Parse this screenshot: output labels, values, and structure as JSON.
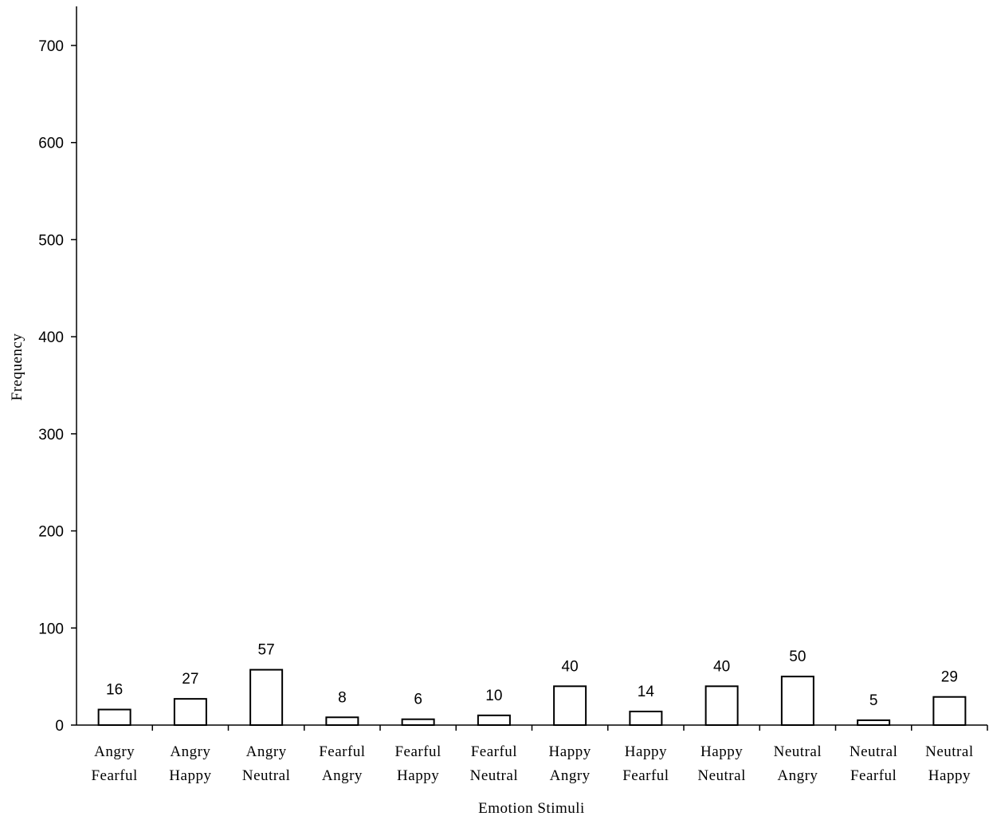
{
  "chart_data": {
    "type": "bar",
    "xlabel": "Emotion Stimuli",
    "ylabel": "Frequency",
    "ylim": [
      0,
      700
    ],
    "yticks": [
      0,
      100,
      200,
      300,
      400,
      500,
      600,
      700
    ],
    "categories": [
      [
        "Angry",
        "Fearful"
      ],
      [
        "Angry",
        "Happy"
      ],
      [
        "Angry",
        "Neutral"
      ],
      [
        "Fearful",
        "Angry"
      ],
      [
        "Fearful",
        "Happy"
      ],
      [
        "Fearful",
        "Neutral"
      ],
      [
        "Happy",
        "Angry"
      ],
      [
        "Happy",
        "Fearful"
      ],
      [
        "Happy",
        "Neutral"
      ],
      [
        "Neutral",
        "Angry"
      ],
      [
        "Neutral",
        "Fearful"
      ],
      [
        "Neutral",
        "Happy"
      ]
    ],
    "values": [
      16,
      27,
      57,
      8,
      6,
      10,
      40,
      14,
      40,
      50,
      5,
      29
    ],
    "grid": false,
    "bar_fill": "#ffffff",
    "bar_stroke": "#000000"
  }
}
